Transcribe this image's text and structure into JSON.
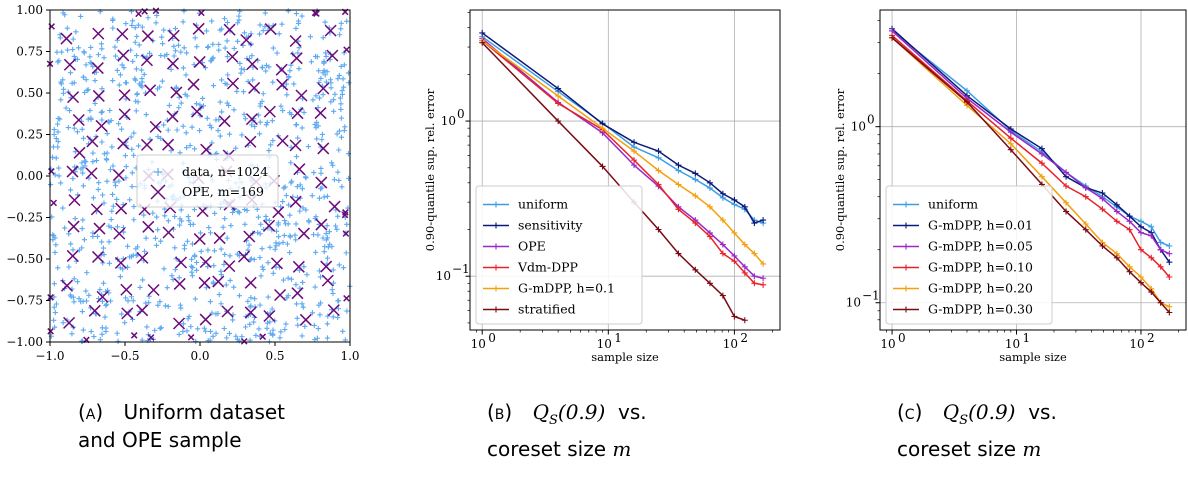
{
  "chart_data": [
    {
      "panel": "A",
      "type": "scatter",
      "xlim": [
        -1,
        1
      ],
      "ylim": [
        -1,
        1
      ],
      "xticks": [
        "−1.0",
        "−0.5",
        "0.0",
        "0.5",
        "1.0"
      ],
      "yticks": [
        "1.00",
        "0.75",
        "0.50",
        "0.25",
        "0.00",
        "−0.25",
        "−0.50",
        "−0.75",
        "−1.00"
      ],
      "xtick_values": [
        -1,
        -0.5,
        0,
        0.5,
        1
      ],
      "ytick_values": [
        1,
        0.75,
        0.5,
        0.25,
        0,
        -0.25,
        -0.5,
        -0.75,
        -1
      ],
      "series": [
        {
          "name": "data, n=1024",
          "marker": "+",
          "color": "#5da9f2",
          "n": 1024
        },
        {
          "name": "OPE, m=169",
          "marker": "x",
          "color": "#6b0a7a",
          "n": 169
        }
      ],
      "legend": "center-right",
      "grid": false
    },
    {
      "panel": "B",
      "type": "line",
      "log_x": true,
      "log_y": true,
      "xlim": [
        0.8,
        230
      ],
      "ylim": [
        0.045,
        5.2
      ],
      "xlabel": "sample size",
      "ylabel": "0.90-quantile sup. rel. error",
      "xticks": [
        "10",
        "10",
        "10"
      ],
      "xtick_exps": [
        "0",
        "1",
        "2"
      ],
      "xtick_values": [
        1,
        10,
        100
      ],
      "yticks": [
        "10",
        "10"
      ],
      "ytick_exps": [
        "0",
        "−1"
      ],
      "ytick_values": [
        1,
        0.1
      ],
      "grid": true,
      "legend": "bottom-left",
      "series": [
        {
          "name": "uniform",
          "color": "#3c9ee6",
          "x": [
            1,
            4,
            9,
            16,
            25,
            36,
            49,
            64,
            81,
            100,
            121,
            144,
            169
          ],
          "y": [
            3.5,
            1.55,
            0.97,
            0.68,
            0.58,
            0.48,
            0.42,
            0.37,
            0.32,
            0.29,
            0.27,
            0.23,
            0.22
          ]
        },
        {
          "name": "sensitivity",
          "color": "#0a1a7a",
          "x": [
            1,
            4,
            9,
            16,
            25,
            36,
            49,
            64,
            81,
            100,
            121,
            144,
            169
          ],
          "y": [
            3.7,
            1.62,
            0.96,
            0.73,
            0.64,
            0.52,
            0.46,
            0.4,
            0.34,
            0.31,
            0.28,
            0.22,
            0.23
          ]
        },
        {
          "name": "OPE",
          "color": "#9b28c8",
          "x": [
            1,
            4,
            9,
            16,
            25,
            36,
            49,
            64,
            81,
            100,
            121,
            144,
            169
          ],
          "y": [
            3.4,
            1.32,
            0.84,
            0.52,
            0.38,
            0.28,
            0.23,
            0.19,
            0.16,
            0.135,
            0.115,
            0.1,
            0.097
          ]
        },
        {
          "name": "Vdm-DPP",
          "color": "#e8222a",
          "x": [
            1,
            4,
            9,
            16,
            25,
            36,
            49,
            64,
            81,
            100,
            121,
            144,
            169
          ],
          "y": [
            3.3,
            1.3,
            0.88,
            0.56,
            0.39,
            0.27,
            0.22,
            0.18,
            0.14,
            0.125,
            0.105,
            0.09,
            0.088
          ]
        },
        {
          "name": "G-mDPP, h=0.1",
          "color": "#f5a00a",
          "x": [
            1,
            4,
            9,
            16,
            25,
            36,
            49,
            64,
            81,
            100,
            121,
            144,
            169
          ],
          "y": [
            3.3,
            1.45,
            0.9,
            0.64,
            0.48,
            0.39,
            0.33,
            0.28,
            0.23,
            0.19,
            0.16,
            0.14,
            0.12
          ]
        },
        {
          "name": "stratified",
          "color": "#7a0a14",
          "x": [
            1,
            4,
            9,
            16,
            25,
            36,
            49,
            64,
            81,
            100,
            121
          ],
          "y": [
            3.2,
            1.0,
            0.51,
            0.3,
            0.2,
            0.14,
            0.11,
            0.09,
            0.075,
            0.055,
            0.052
          ]
        }
      ]
    },
    {
      "panel": "C",
      "type": "line",
      "log_x": true,
      "log_y": true,
      "xlim": [
        0.8,
        230
      ],
      "ylim": [
        0.07,
        4.6
      ],
      "xlabel": "sample size",
      "ylabel": "0.90-quantile sup. rel. error",
      "xticks": [
        "10",
        "10",
        "10"
      ],
      "xtick_exps": [
        "0",
        "1",
        "2"
      ],
      "xtick_values": [
        1,
        10,
        100
      ],
      "yticks": [
        "10",
        "10"
      ],
      "ytick_exps": [
        "0",
        "−1"
      ],
      "ytick_values": [
        1,
        0.1
      ],
      "grid": true,
      "legend": "bottom-left",
      "series": [
        {
          "name": "uniform",
          "color": "#3c9ee6",
          "x": [
            1,
            4,
            9,
            16,
            25,
            36,
            49,
            64,
            81,
            100,
            121,
            144,
            169
          ],
          "y": [
            3.5,
            1.6,
            0.95,
            0.72,
            0.55,
            0.46,
            0.4,
            0.35,
            0.31,
            0.29,
            0.27,
            0.22,
            0.21
          ]
        },
        {
          "name": "G-mDPP, h=0.01",
          "color": "#0a1a7a",
          "x": [
            1,
            4,
            9,
            16,
            25,
            36,
            49,
            64,
            81,
            100,
            121,
            144,
            169
          ],
          "y": [
            3.6,
            1.5,
            0.97,
            0.75,
            0.52,
            0.45,
            0.42,
            0.36,
            0.31,
            0.27,
            0.25,
            0.2,
            0.17
          ]
        },
        {
          "name": "G-mDPP, h=0.05",
          "color": "#9b28c8",
          "x": [
            1,
            4,
            9,
            16,
            25,
            36,
            49,
            64,
            81,
            100,
            121,
            144,
            169
          ],
          "y": [
            3.5,
            1.45,
            0.93,
            0.7,
            0.55,
            0.45,
            0.39,
            0.33,
            0.29,
            0.25,
            0.24,
            0.2,
            0.19
          ]
        },
        {
          "name": "G-mDPP, h=0.10",
          "color": "#e8222a",
          "x": [
            1,
            4,
            9,
            16,
            25,
            36,
            49,
            64,
            81,
            100,
            121,
            144,
            169
          ],
          "y": [
            3.3,
            1.4,
            0.86,
            0.62,
            0.46,
            0.4,
            0.34,
            0.29,
            0.26,
            0.2,
            0.18,
            0.16,
            0.14
          ]
        },
        {
          "name": "G-mDPP, h=0.20",
          "color": "#f5a00a",
          "x": [
            1,
            4,
            9,
            16,
            25,
            36,
            49,
            64,
            81,
            100,
            121,
            144,
            169
          ],
          "y": [
            3.2,
            1.32,
            0.8,
            0.52,
            0.37,
            0.28,
            0.22,
            0.19,
            0.16,
            0.14,
            0.12,
            0.1,
            0.095
          ]
        },
        {
          "name": "G-mDPP, h=0.30",
          "color": "#7a0a14",
          "x": [
            1,
            4,
            9,
            16,
            25,
            36,
            49,
            64,
            81,
            100,
            121,
            144,
            169
          ],
          "y": [
            3.2,
            1.38,
            0.74,
            0.47,
            0.33,
            0.26,
            0.21,
            0.18,
            0.15,
            0.13,
            0.115,
            0.1,
            0.088
          ]
        }
      ]
    }
  ],
  "captions": {
    "a": {
      "tag": "(a)",
      "text": "Uniform dataset and OPE sample"
    },
    "b": {
      "tag": "(b)",
      "q": "Q",
      "sub": "S",
      "arg": "(0.9)",
      "vs": "vs.",
      "line2": "coreset size",
      "m": "m"
    },
    "c": {
      "tag": "(c)",
      "q": "Q",
      "sub": "S",
      "arg": "(0.9)",
      "vs": "vs.",
      "line2": "coreset size",
      "m": "m"
    }
  }
}
